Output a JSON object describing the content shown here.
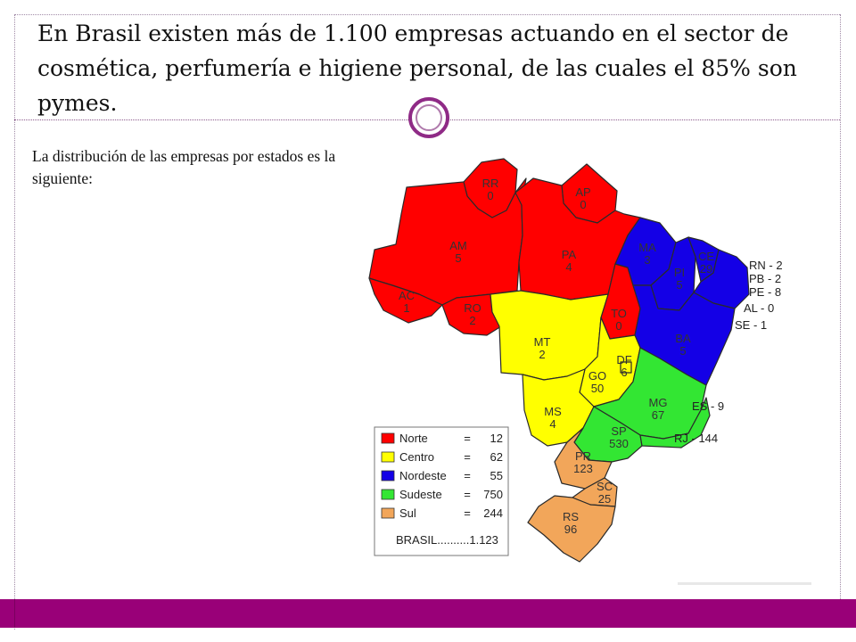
{
  "slide": {
    "title": "En Brasil existen más de 1.100 empresas actuando en el sector de cosmética, perfumería e higiene personal, de las cuales el 85% son pymes.",
    "subtitle": "La distribución de las empresas por estados es la siguiente:"
  },
  "colors": {
    "norte": "#ff0000",
    "centro": "#ffff00",
    "nordeste": "#1400e6",
    "sudeste": "#33e633",
    "sul": "#f2a65a",
    "footer": "#990078",
    "accent_ring": "#8f2a86"
  },
  "map": {
    "states": [
      {
        "code": "RR",
        "value": "0",
        "region": "norte"
      },
      {
        "code": "AP",
        "value": "0",
        "region": "norte"
      },
      {
        "code": "AM",
        "value": "5",
        "region": "norte"
      },
      {
        "code": "PA",
        "value": "4",
        "region": "norte"
      },
      {
        "code": "AC",
        "value": "1",
        "region": "norte"
      },
      {
        "code": "RO",
        "value": "2",
        "region": "norte"
      },
      {
        "code": "TO",
        "value": "0",
        "region": "norte"
      },
      {
        "code": "MA",
        "value": "3",
        "region": "nordeste"
      },
      {
        "code": "PI",
        "value": "5",
        "region": "nordeste"
      },
      {
        "code": "CE",
        "value": "29",
        "region": "nordeste"
      },
      {
        "code": "BA",
        "value": "5",
        "region": "nordeste"
      },
      {
        "code": "MT",
        "value": "2",
        "region": "centro"
      },
      {
        "code": "GO",
        "value": "50",
        "region": "centro"
      },
      {
        "code": "DF",
        "value": "6",
        "region": "centro"
      },
      {
        "code": "MS",
        "value": "4",
        "region": "centro"
      },
      {
        "code": "MG",
        "value": "67",
        "region": "sudeste"
      },
      {
        "code": "SP",
        "value": "530",
        "region": "sudeste"
      },
      {
        "code": "PR",
        "value": "123",
        "region": "sul"
      },
      {
        "code": "SC",
        "value": "25",
        "region": "sul"
      },
      {
        "code": "RS",
        "value": "96",
        "region": "sul"
      }
    ],
    "side_labels": [
      "RN - 2",
      "PB - 2",
      "PE - 8",
      "AL - 0",
      "SE - 1",
      "ES - 9",
      "RJ - 144"
    ],
    "legend": [
      {
        "name": "Norte",
        "eq": "=",
        "value": "12",
        "color": "#ff0000"
      },
      {
        "name": "Centro",
        "eq": "=",
        "value": "62",
        "color": "#ffff00"
      },
      {
        "name": "Nordeste",
        "eq": "=",
        "value": "55",
        "color": "#1400e6"
      },
      {
        "name": "Sudeste",
        "eq": "=",
        "value": "750",
        "color": "#33e633"
      },
      {
        "name": "Sul",
        "eq": "=",
        "value": "244",
        "color": "#f2a65a"
      }
    ],
    "total_label": "BRASIL..........1.123"
  }
}
